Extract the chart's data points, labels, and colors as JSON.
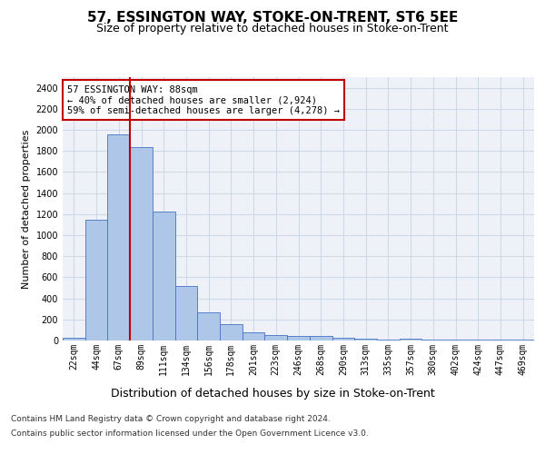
{
  "title1": "57, ESSINGTON WAY, STOKE-ON-TRENT, ST6 5EE",
  "title2": "Size of property relative to detached houses in Stoke-on-Trent",
  "xlabel": "Distribution of detached houses by size in Stoke-on-Trent",
  "ylabel": "Number of detached properties",
  "categories": [
    "22sqm",
    "44sqm",
    "67sqm",
    "89sqm",
    "111sqm",
    "134sqm",
    "156sqm",
    "178sqm",
    "201sqm",
    "223sqm",
    "246sqm",
    "268sqm",
    "290sqm",
    "313sqm",
    "335sqm",
    "357sqm",
    "380sqm",
    "402sqm",
    "424sqm",
    "447sqm",
    "469sqm"
  ],
  "values": [
    30,
    1150,
    1960,
    1840,
    1220,
    515,
    265,
    155,
    80,
    50,
    45,
    40,
    22,
    18,
    10,
    18,
    5,
    5,
    5,
    5,
    5
  ],
  "bar_color": "#aec6e8",
  "bar_edge_color": "#4472c4",
  "marker_color": "#c00000",
  "annotation_text": "57 ESSINGTON WAY: 88sqm\n← 40% of detached houses are smaller (2,924)\n59% of semi-detached houses are larger (4,278) →",
  "annotation_box_color": "#c00000",
  "ylim": [
    0,
    2500
  ],
  "yticks": [
    0,
    200,
    400,
    600,
    800,
    1000,
    1200,
    1400,
    1600,
    1800,
    2000,
    2200,
    2400
  ],
  "footer1": "Contains HM Land Registry data © Crown copyright and database right 2024.",
  "footer2": "Contains public sector information licensed under the Open Government Licence v3.0.",
  "bg_color": "#ffffff",
  "plot_bg_color": "#eef2f8",
  "grid_color": "#d0d8e8",
  "title1_fontsize": 11,
  "title2_fontsize": 9,
  "xlabel_fontsize": 9,
  "ylabel_fontsize": 8,
  "tick_fontsize": 7,
  "annotation_fontsize": 7.5,
  "footer_fontsize": 6.5
}
